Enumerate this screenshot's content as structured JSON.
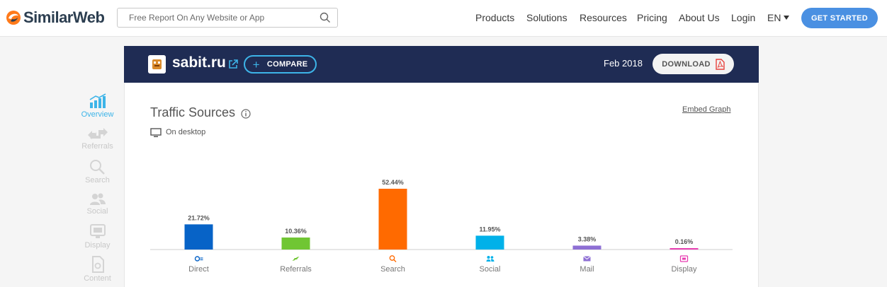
{
  "brand": {
    "name": "SimilarWeb"
  },
  "search": {
    "placeholder": "Free Report On Any Website or App"
  },
  "nav": {
    "links": [
      "Products",
      "Solutions",
      "Resources",
      "Pricing",
      "About Us",
      "Login"
    ],
    "language": "EN",
    "cta": "GET STARTED"
  },
  "sidebar": {
    "items": [
      {
        "label": "Overview",
        "icon": "bar-chart-icon",
        "active": true
      },
      {
        "label": "Referrals",
        "icon": "referrals-arrows-icon",
        "active": false
      },
      {
        "label": "Search",
        "icon": "magnifier-icon",
        "active": false
      },
      {
        "label": "Social",
        "icon": "people-icon",
        "active": false
      },
      {
        "label": "Display",
        "icon": "display-ad-icon",
        "active": false
      },
      {
        "label": "Content",
        "icon": "document-icon",
        "active": false
      }
    ]
  },
  "site": {
    "domain": "sabit.ru",
    "compare": "COMPARE",
    "period": "Feb 2018",
    "download": "DOWNLOAD"
  },
  "traffic": {
    "title": "Traffic Sources",
    "embed": "Embed Graph",
    "device": "On desktop"
  },
  "colors": {
    "header_bg": "#1f2c54",
    "accent": "#3db4e8",
    "cta": "#4a90e2"
  },
  "chart_data": {
    "type": "bar",
    "categories": [
      "Direct",
      "Referrals",
      "Search",
      "Social",
      "Mail",
      "Display"
    ],
    "values": [
      21.72,
      10.36,
      52.44,
      11.95,
      3.38,
      0.16
    ],
    "labels": [
      "21.72%",
      "10.36%",
      "52.44%",
      "11.95%",
      "3.38%",
      "0.16%"
    ],
    "colors": [
      "#0763c7",
      "#70c633",
      "#ff6a00",
      "#00b1e9",
      "#8e6fd4",
      "#e73eb1"
    ],
    "icons": [
      "direct-icon",
      "referrals-icon",
      "search-icon",
      "social-icon",
      "mail-icon",
      "display-icon"
    ],
    "ylim": [
      0,
      52.44
    ],
    "grid": false,
    "legend": "none"
  }
}
